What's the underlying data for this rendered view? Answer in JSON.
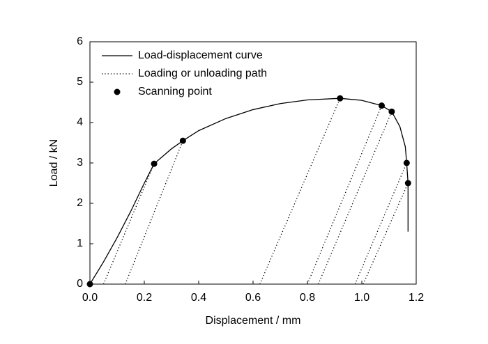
{
  "chart_data": {
    "type": "line",
    "x_label": "Displacement / mm",
    "y_label": "Load / kN",
    "xlim": [
      0,
      1.2
    ],
    "ylim": [
      0,
      6
    ],
    "xticks": [
      {
        "value": 0,
        "label": "0.0"
      },
      {
        "value": 0.2,
        "label": "0.2"
      },
      {
        "value": 0.4,
        "label": "0.4"
      },
      {
        "value": 0.6,
        "label": "0.6"
      },
      {
        "value": 0.8,
        "label": "0.8"
      },
      {
        "value": 1.0,
        "label": "1.0"
      },
      {
        "value": 1.2,
        "label": "1.2"
      }
    ],
    "yticks": [
      0,
      1,
      2,
      3,
      4,
      5,
      6
    ],
    "legend": "upper left",
    "series": [
      {
        "name": "Load-displacement curve",
        "type": "line",
        "dash": "solid",
        "color": "#000000",
        "x": [
          0,
          0.05,
          0.1,
          0.15,
          0.2,
          0.236,
          0.3,
          0.342,
          0.4,
          0.5,
          0.6,
          0.7,
          0.8,
          0.92,
          1.0,
          1.073,
          1.11,
          1.14,
          1.16,
          1.165,
          1.17,
          1.17
        ],
        "y": [
          0,
          0.55,
          1.15,
          1.8,
          2.5,
          2.98,
          3.35,
          3.55,
          3.8,
          4.1,
          4.32,
          4.47,
          4.56,
          4.6,
          4.55,
          4.42,
          4.27,
          3.9,
          3.4,
          3.0,
          2.5,
          1.3
        ]
      },
      {
        "name": "Loading or unloading path",
        "type": "line",
        "dash": "dotted",
        "color": "#000000",
        "x": [
          0.05,
          0.236,
          null,
          0.13,
          0.342,
          null,
          0.625,
          0.92,
          null,
          0.8,
          1.073,
          null,
          0.84,
          1.11,
          null,
          0.975,
          1.165,
          null,
          1.005,
          1.17
        ],
        "y": [
          0,
          2.98,
          null,
          0,
          3.55,
          null,
          0,
          4.6,
          null,
          0,
          4.42,
          null,
          0,
          4.27,
          null,
          0,
          3.0,
          null,
          0,
          2.5
        ]
      },
      {
        "name": "Scanning point",
        "type": "scatter",
        "color": "#000000",
        "x": [
          0,
          0.236,
          0.342,
          0.92,
          1.073,
          1.11,
          1.165,
          1.17
        ],
        "y": [
          0,
          2.98,
          3.55,
          4.6,
          4.42,
          4.27,
          3.0,
          2.5
        ]
      }
    ]
  }
}
